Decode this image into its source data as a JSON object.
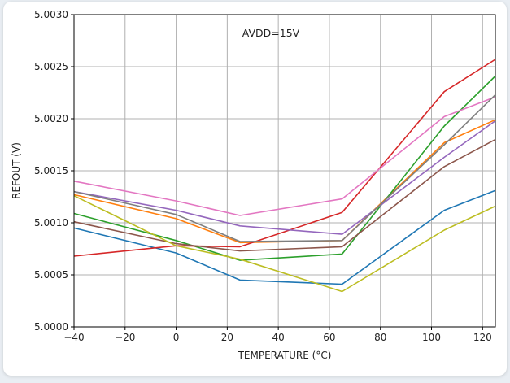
{
  "chart_data": {
    "type": "line",
    "title": "",
    "xlabel": "TEMPERATURE (°C)",
    "ylabel": "REFOUT (V)",
    "annotation": "AVDD=15V",
    "xlim": [
      -40,
      125
    ],
    "ylim": [
      5.0,
      5.003
    ],
    "xticks": [
      -40,
      -20,
      0,
      20,
      40,
      60,
      80,
      100,
      120
    ],
    "xtick_labels": [
      "−40",
      "−20",
      "0",
      "20",
      "40",
      "60",
      "80",
      "100",
      "120"
    ],
    "yticks": [
      5.0,
      5.0005,
      5.001,
      5.0015,
      5.002,
      5.0025,
      5.003
    ],
    "ytick_labels": [
      "5.0000",
      "5.0005",
      "5.0010",
      "5.0015",
      "5.0020",
      "5.0025",
      "5.0030"
    ],
    "grid": true,
    "x": [
      -40,
      0,
      25,
      65,
      105,
      125
    ],
    "series": [
      {
        "color": "#1f77b4",
        "values": [
          5.00095,
          5.00071,
          5.00045,
          5.00041,
          5.00112,
          5.00131
        ]
      },
      {
        "color": "#ff7f0e",
        "values": [
          5.00127,
          5.00104,
          5.00081,
          5.00083,
          5.00177,
          5.00199
        ]
      },
      {
        "color": "#2ca02c",
        "values": [
          5.00109,
          5.00083,
          5.00064,
          5.0007,
          5.00193,
          5.00241
        ]
      },
      {
        "color": "#d62728",
        "values": [
          5.00068,
          5.00078,
          5.00077,
          5.0011,
          5.00226,
          5.00257
        ]
      },
      {
        "color": "#9467bd",
        "values": [
          5.0013,
          5.00112,
          5.00097,
          5.00089,
          5.00163,
          5.00198
        ]
      },
      {
        "color": "#8c564b",
        "values": [
          5.00101,
          5.0008,
          5.00073,
          5.00077,
          5.00154,
          5.0018
        ]
      },
      {
        "color": "#e377c2",
        "values": [
          5.0014,
          5.00121,
          5.00107,
          5.00123,
          5.00202,
          5.00221
        ]
      },
      {
        "color": "#7f7f7f",
        "values": [
          5.0013,
          5.00108,
          5.00082,
          5.00083,
          5.00175,
          5.00223
        ]
      },
      {
        "color": "#bcbd22",
        "values": [
          5.00126,
          5.00078,
          5.00065,
          5.00034,
          5.00093,
          5.00116
        ]
      }
    ]
  }
}
